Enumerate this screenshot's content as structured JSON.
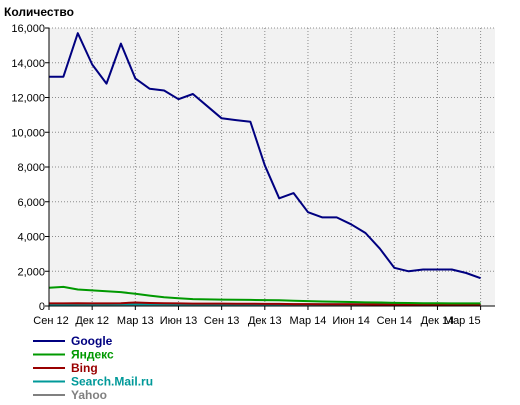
{
  "chart_data": {
    "type": "line",
    "title": "",
    "ylabel": "Количество",
    "xlabel": "",
    "ylim": [
      0,
      16000
    ],
    "yticks": [
      0,
      2000,
      4000,
      6000,
      8000,
      10000,
      12000,
      14000,
      16000
    ],
    "ytick_labels": [
      "0",
      "2,000",
      "4,000",
      "6,000",
      "8,000",
      "10,000",
      "12,000",
      "14,000",
      "16,000"
    ],
    "x_categories": [
      "Сен 12",
      "Дек 12",
      "Мар 13",
      "Июн 13",
      "Сен 13",
      "Дек 13",
      "Мар 14",
      "Июн 14",
      "Сен 14",
      "Дек 14",
      "Мар 15"
    ],
    "xlim": [
      0,
      31
    ],
    "grid": true,
    "legend_position": "bottom-left",
    "series": [
      {
        "name": "Google",
        "color": "#000080",
        "x": [
          0,
          1,
          2,
          3,
          4,
          5,
          6,
          7,
          8,
          9,
          10,
          11,
          12,
          13,
          14,
          15,
          16,
          17,
          18,
          19,
          20,
          21,
          22,
          23,
          24,
          25,
          26,
          27,
          28,
          29,
          30
        ],
        "y": [
          13200,
          13200,
          15700,
          13900,
          12800,
          15100,
          13100,
          12500,
          12400,
          11900,
          12200,
          11500,
          10800,
          10700,
          10600,
          8100,
          6200,
          6500,
          5400,
          5100,
          5100,
          4700,
          4200,
          3300,
          2200,
          2000,
          2100,
          2100,
          2100,
          1900,
          1600
        ]
      },
      {
        "name": "Яндекс",
        "color": "#009900",
        "x": [
          0,
          1,
          2,
          3,
          4,
          5,
          6,
          7,
          8,
          9,
          10,
          11,
          12,
          13,
          14,
          15,
          16,
          17,
          18,
          19,
          20,
          21,
          22,
          23,
          24,
          25,
          26,
          27,
          28,
          29,
          30
        ],
        "y": [
          1050,
          1100,
          950,
          900,
          850,
          800,
          700,
          600,
          500,
          450,
          400,
          380,
          370,
          360,
          350,
          340,
          330,
          300,
          280,
          260,
          240,
          230,
          210,
          200,
          180,
          170,
          160,
          160,
          150,
          150,
          150
        ]
      },
      {
        "name": "Bing",
        "color": "#990000",
        "x": [
          0,
          1,
          2,
          3,
          4,
          5,
          6,
          7,
          8,
          9,
          10,
          11,
          12,
          13,
          14,
          15,
          16,
          17,
          18,
          19,
          20,
          21,
          22,
          23,
          24,
          25,
          26,
          27,
          28,
          29,
          30
        ],
        "y": [
          150,
          150,
          160,
          150,
          150,
          160,
          200,
          170,
          160,
          150,
          140,
          140,
          140,
          130,
          130,
          120,
          120,
          110,
          110,
          100,
          100,
          100,
          90,
          80,
          80,
          70,
          70,
          70,
          60,
          60,
          60
        ]
      },
      {
        "name": "Search.Mail.ru",
        "color": "#009999",
        "x": [
          0,
          1,
          2,
          3,
          4,
          5,
          6,
          7,
          8,
          9,
          10,
          11,
          12,
          13,
          14,
          15,
          16,
          17,
          18,
          19,
          20,
          21,
          22,
          23,
          24,
          25,
          26,
          27,
          28,
          29,
          30
        ],
        "y": [
          80,
          80,
          90,
          90,
          90,
          100,
          100,
          100,
          100,
          90,
          90,
          90,
          90,
          90,
          90,
          90,
          90,
          100,
          100,
          100,
          100,
          100,
          100,
          100,
          100,
          100,
          100,
          100,
          100,
          100,
          100
        ]
      },
      {
        "name": "Yahoo",
        "color": "#808080",
        "x": [
          0,
          1,
          2,
          3,
          4,
          5,
          6,
          7,
          8,
          9,
          10,
          11,
          12,
          13,
          14,
          15,
          16,
          17,
          18,
          19,
          20,
          21,
          22,
          23,
          24,
          25,
          26,
          27,
          28,
          29,
          30
        ],
        "y": [
          30,
          30,
          30,
          30,
          30,
          30,
          30,
          30,
          30,
          30,
          30,
          30,
          30,
          30,
          30,
          30,
          30,
          30,
          30,
          30,
          30,
          30,
          30,
          30,
          30,
          30,
          30,
          30,
          30,
          30,
          30
        ]
      }
    ]
  }
}
